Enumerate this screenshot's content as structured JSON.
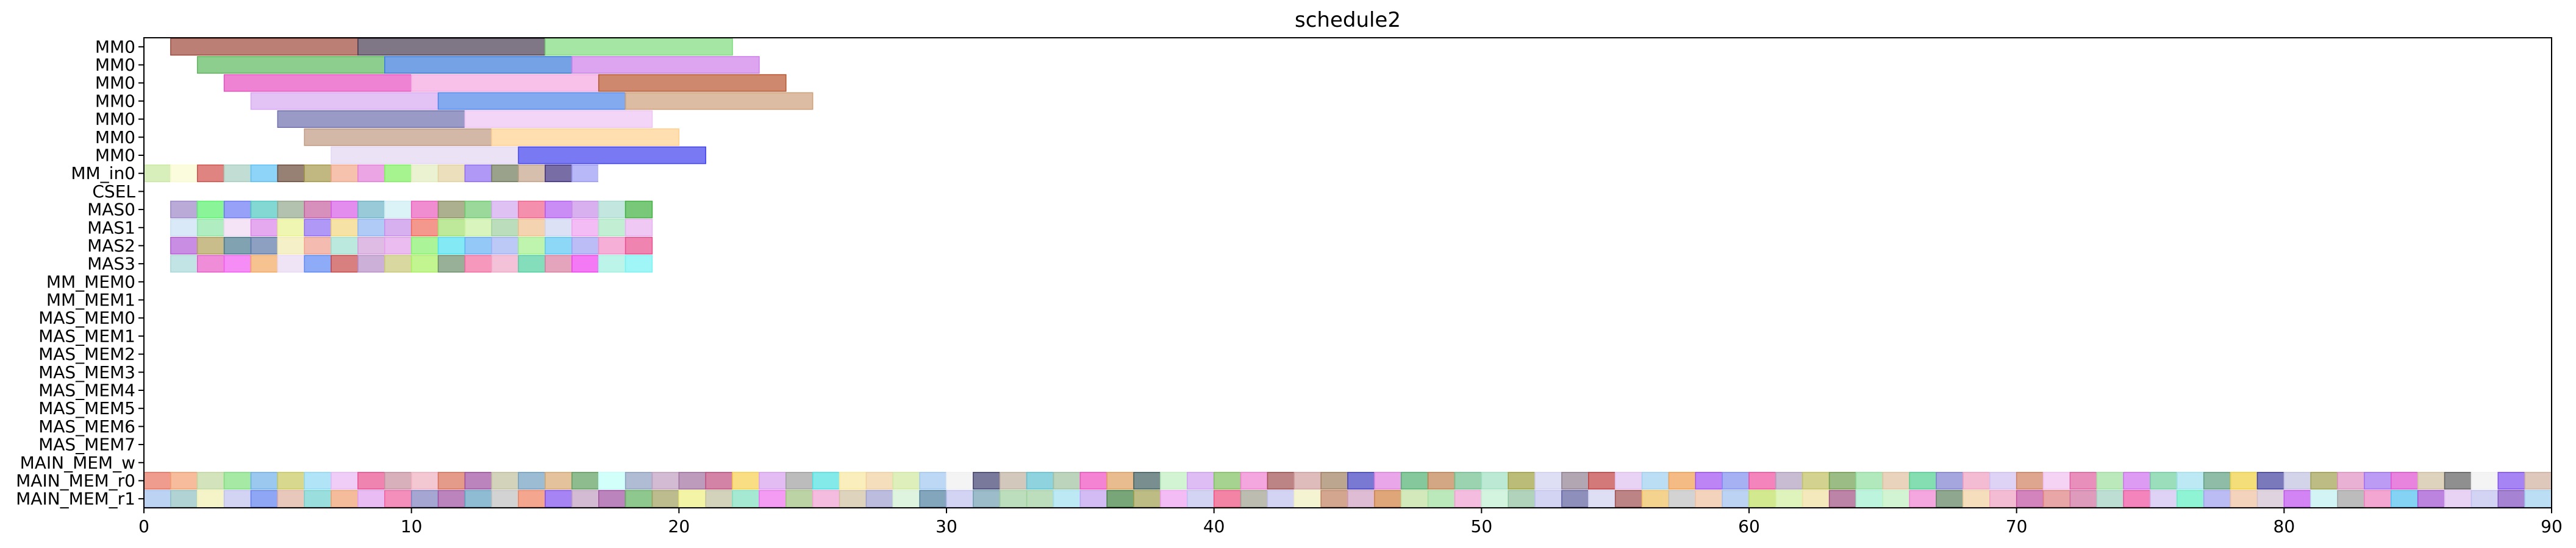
{
  "chart_data": {
    "type": "gantt",
    "title": "schedule2",
    "xlabel": "",
    "ylabel": "",
    "xlim": [
      0,
      90
    ],
    "x_ticks": [
      0,
      10,
      20,
      30,
      40,
      50,
      60,
      70,
      80,
      90
    ],
    "grid": false,
    "rows": [
      "MM0",
      "MM0",
      "MM0",
      "MM0",
      "MM0",
      "MM0",
      "MM0",
      "MM_in0",
      "CSEL",
      "MAS0",
      "MAS1",
      "MAS2",
      "MAS3",
      "MM_MEM0",
      "MM_MEM1",
      "MAS_MEM0",
      "MAS_MEM1",
      "MAS_MEM2",
      "MAS_MEM3",
      "MAS_MEM4",
      "MAS_MEM5",
      "MAS_MEM6",
      "MAS_MEM7",
      "MAIN_MEM_w",
      "MAIN_MEM_r0",
      "MAIN_MEM_r1"
    ],
    "tasks": [
      {
        "row": 0,
        "start": 1,
        "end": 8,
        "color": "#a0493b"
      },
      {
        "row": 0,
        "start": 8,
        "end": 15,
        "color": "#4a3d52"
      },
      {
        "row": 0,
        "start": 15,
        "end": 22,
        "color": "#7fdc7f"
      },
      {
        "row": 1,
        "start": 2,
        "end": 9,
        "color": "#5cb85c"
      },
      {
        "row": 1,
        "start": 9,
        "end": 16,
        "color": "#3b7bd9"
      },
      {
        "row": 1,
        "start": 16,
        "end": 23,
        "color": "#cf7fe9"
      },
      {
        "row": 2,
        "start": 3,
        "end": 10,
        "color": "#e84fc0"
      },
      {
        "row": 2,
        "start": 10,
        "end": 17,
        "color": "#f3a7df"
      },
      {
        "row": 2,
        "start": 17,
        "end": 24,
        "color": "#b8562f"
      },
      {
        "row": 3,
        "start": 4,
        "end": 11,
        "color": "#d7a8f2"
      },
      {
        "row": 3,
        "start": 11,
        "end": 18,
        "color": "#4f86e8"
      },
      {
        "row": 3,
        "start": 18,
        "end": 25,
        "color": "#cda07a"
      },
      {
        "row": 4,
        "start": 5,
        "end": 12,
        "color": "#6f6fae"
      },
      {
        "row": 4,
        "start": 12,
        "end": 19,
        "color": "#eec4f3"
      },
      {
        "row": 5,
        "start": 6,
        "end": 13,
        "color": "#c09a83"
      },
      {
        "row": 5,
        "start": 13,
        "end": 20,
        "color": "#ffd08f"
      },
      {
        "row": 6,
        "start": 7,
        "end": 14,
        "color": "#e2d6f2"
      },
      {
        "row": 6,
        "start": 14,
        "end": 21,
        "color": "#4040ee"
      }
    ],
    "grid_rows": [
      {
        "row": 7,
        "start": 0,
        "length": 18,
        "colors": [
          "#c8e8a0",
          "#fafad0",
          "#d1504c",
          "#a8cfc0",
          "#5ec1f5",
          "#6b4b3b",
          "#a59a4a",
          "#f2a88b",
          "#e37fd9",
          "#7ff05f",
          "#e2ecbf",
          "#e3d29f",
          "#8f6cf2",
          "#6f7a5a",
          "#c4a48a",
          "#3f2f7f",
          "#9a9af7",
          "#ffffff"
        ]
      },
      {
        "row": 9,
        "start": 1,
        "length": 18,
        "colors": [
          "#9c86c7",
          "#59f06d",
          "#6b79f3",
          "#4fc8c0",
          "#93a68d",
          "#c65fa0",
          "#d75ce7",
          "#6cb3c6",
          "#ccecf2",
          "#ea5dbd",
          "#8a8f5e",
          "#6fc96f",
          "#d2a7f0",
          "#ef5f8a",
          "#b45cf1",
          "#c88fe8",
          "#a9dbd0",
          "#40b040"
        ]
      },
      {
        "row": 10,
        "start": 1,
        "length": 18,
        "colors": [
          "#c9dff3",
          "#8fe5a7",
          "#f0d8f2",
          "#d985e7",
          "#e8f290",
          "#8f6cf2",
          "#f2d67f",
          "#8fb5f2",
          "#c58fe8",
          "#f06b5c",
          "#a3e06f",
          "#c9f0a0",
          "#9fcf9f",
          "#f0c08f",
          "#cfd4f2",
          "#f09ff0",
          "#a8e8c0",
          "#e8b0f0"
        ]
      },
      {
        "row": 11,
        "start": 1,
        "length": 18,
        "colors": [
          "#b35cd8",
          "#b2a25a",
          "#4b7a8f",
          "#5c78a8",
          "#f2eab0",
          "#f0a08f",
          "#a0e0d0",
          "#d2a0d8",
          "#e3a0e8",
          "#88f06b",
          "#4ee0f0",
          "#66b0f2",
          "#a0b0f2",
          "#a2f08a",
          "#5cc8f2",
          "#a0a0f2",
          "#f28fc8",
          "#e8508f"
        ]
      },
      {
        "row": 12,
        "start": 1,
        "length": 18,
        "colors": [
          "#a8d8d8",
          "#e85cc8",
          "#f25cf2",
          "#f2a860",
          "#e8d8f2",
          "#5c88f2",
          "#c84848",
          "#b88fc8",
          "#c8c878",
          "#a8f060",
          "#6b8f6b",
          "#f26ba0",
          "#f0a8c8",
          "#50d0a0",
          "#d87fa0",
          "#f040f0",
          "#a0f0e0",
          "#78f2f2"
        ]
      },
      {
        "row": 24,
        "start": 0,
        "length": 90,
        "colors": [
          "#e8705c",
          "#f2a070",
          "#c0d8a0",
          "#7fe07f",
          "#6fb0e8",
          "#c8c860",
          "#8fd8f2",
          "#e8b8f2",
          "#e8508f",
          "#c88fa0",
          "#f0b0c0",
          "#d87058",
          "#a050a0",
          "#c0c0a0",
          "#70a0c0",
          "#d8a870",
          "#60a060",
          "#c0fff8",
          "#8fa0c0",
          "#c0a0c0",
          "#a070a0",
          "#c05080",
          "#f8d050",
          "#d8a0f0",
          "#a0a0a0",
          "#50e0e0",
          "#f8e8a0",
          "#f0d0a0",
          "#d0e8a0",
          "#a0c8f0",
          "#f0f0f0",
          "#404070",
          "#c0b0a0",
          "#60c0d0",
          "#a0c0a0",
          "#f050c0",
          "#e0a060",
          "#406060",
          "#c0f0c0",
          "#d0a0f0",
          "#80c060",
          "#f080d0",
          "#a05050",
          "#d0a0a0",
          "#a08060",
          "#4040c0",
          "#e080e0",
          "#50b070",
          "#c08050",
          "#70c090",
          "#a0e0c0",
          "#a0a040",
          "#d0d0f0",
          "#908090",
          "#c04040",
          "#e0c0f0",
          "#a0d0f0",
          "#f0a050",
          "#a050f0",
          "#8090f0",
          "#f050a0",
          "#b0a0c0",
          "#c0c060",
          "#70a050",
          "#90e0a0",
          "#e0c0a0",
          "#50d090",
          "#8080d0",
          "#f0a0c0",
          "#d0c0f0",
          "#d08060",
          "#f0c0f0",
          "#e060a0",
          "#a0e0a0",
          "#d070f0",
          "#70d0a0",
          "#a0e0f0",
          "#60a080",
          "#f0d040",
          "#4040a0",
          "#c0c0e0",
          "#a0a050",
          "#e090c0",
          "#a070f0",
          "#e050d0",
          "#d0c0a0",
          "#606060",
          "#f0f0f0",
          "#8050f0",
          "#d0b0a0"
        ]
      },
      {
        "row": 25,
        "start": 0,
        "length": 90,
        "colors": [
          "#a0c0f0",
          "#90c0c0",
          "#f0f0b0",
          "#c0c0f0",
          "#6080f0",
          "#e0b0a0",
          "#70d0d0",
          "#f0a070",
          "#e0a0f0",
          "#f060a0",
          "#8080c0",
          "#a050a0",
          "#60a0c0",
          "#c0c0c0",
          "#f08060",
          "#8050f0",
          "#c0a0c0",
          "#a050a0",
          "#60b060",
          "#a0a060",
          "#f0f080",
          "#c0c0a0",
          "#80e0c0",
          "#f070f0",
          "#a0c080",
          "#f0a0d0",
          "#d0c0a0",
          "#a0a0d0",
          "#d0f0d0",
          "#5080a0",
          "#c0c0f0",
          "#70a0b0",
          "#a0d0a0",
          "#a0d0a0",
          "#a0e0f0",
          "#c0a0f0",
          "#408040",
          "#a0a050",
          "#f0a0f0",
          "#c0c0f0",
          "#f05080",
          "#a0a090",
          "#c0c0f0",
          "#f0f0c0",
          "#c08060",
          "#d0a0c0",
          "#d08040",
          "#c0e0a0",
          "#a0e0a0",
          "#f0a0d0",
          "#c0f0d0",
          "#90c0a0",
          "#c0c0f0",
          "#6060a0",
          "#d0d0f0",
          "#a05050",
          "#f0c060",
          "#c0c0c0",
          "#f0c0a0",
          "#a0c0f0",
          "#c0e060",
          "#d0f0a0",
          "#f0e0a0",
          "#a05080",
          "#a0f0d0",
          "#c0f0c0",
          "#f080d0",
          "#608060",
          "#f0d0a0",
          "#f0a0c0",
          "#c050a0",
          "#e08080",
          "#d070a0",
          "#a0d0c0",
          "#f050a0",
          "#d0c0f0",
          "#60f0c0",
          "#a0a0f0",
          "#f0c0a0",
          "#d0c0d0",
          "#c050f0",
          "#c0f0f0",
          "#a0a0a0",
          "#f080c0",
          "#50c0f0",
          "#a050d0",
          "#e0c0f0",
          "#c0c0f0",
          "#8050c0",
          "#a0d0f0"
        ]
      }
    ]
  }
}
